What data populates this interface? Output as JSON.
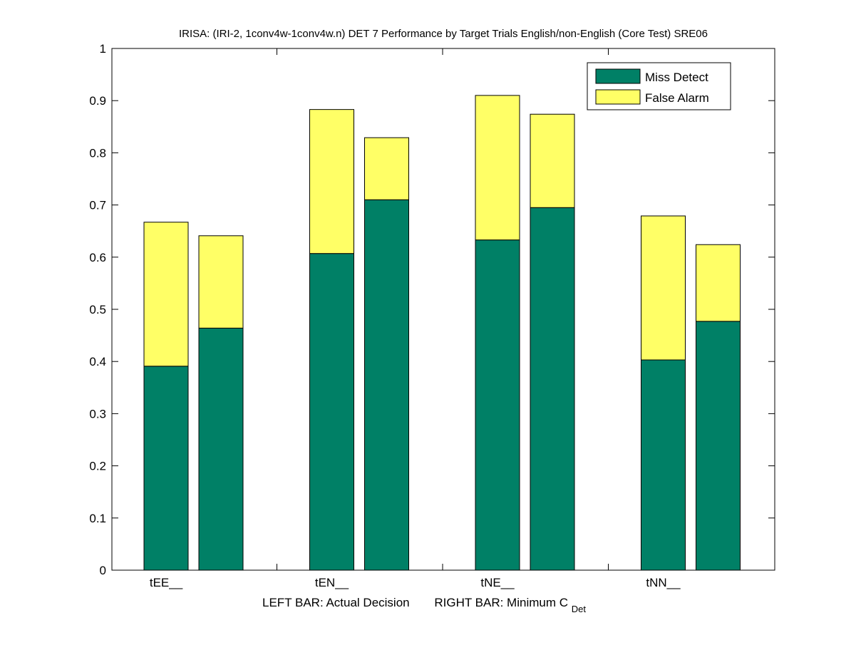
{
  "chart_data": {
    "type": "bar",
    "stacked": true,
    "title": "IRISA: (IRI-2, 1conv4w-1conv4w.n) DET 7 Performance by Target Trials English/non-English (Core Test) SRE06",
    "xlabel": {
      "left_part": "LEFT BAR: Actual Decision",
      "right_part": "RIGHT BAR: Minimum C",
      "subscript": "Det"
    },
    "ylabel": "",
    "ylim": [
      0,
      1
    ],
    "yticks": [
      "0",
      "0.1",
      "0.2",
      "0.3",
      "0.4",
      "0.5",
      "0.6",
      "0.7",
      "0.8",
      "0.9",
      "1"
    ],
    "categories": [
      "tEE__",
      "tEN__",
      "tNE__",
      "tNN__"
    ],
    "bars_per_category": [
      "Actual Decision",
      "Minimum C_Det"
    ],
    "series": [
      {
        "name": "Miss Detect",
        "color": "#008066",
        "values": [
          [
            0.391,
            0.464
          ],
          [
            0.607,
            0.71
          ],
          [
            0.633,
            0.695
          ],
          [
            0.403,
            0.477
          ]
        ]
      },
      {
        "name": "False Alarm",
        "color": "#ffff66",
        "values": [
          [
            0.276,
            0.177
          ],
          [
            0.276,
            0.119
          ],
          [
            0.277,
            0.179
          ],
          [
            0.276,
            0.147
          ]
        ]
      }
    ],
    "legend": {
      "placement": "top-right",
      "entries": [
        "Miss Detect",
        "False Alarm"
      ]
    },
    "grid": false
  }
}
